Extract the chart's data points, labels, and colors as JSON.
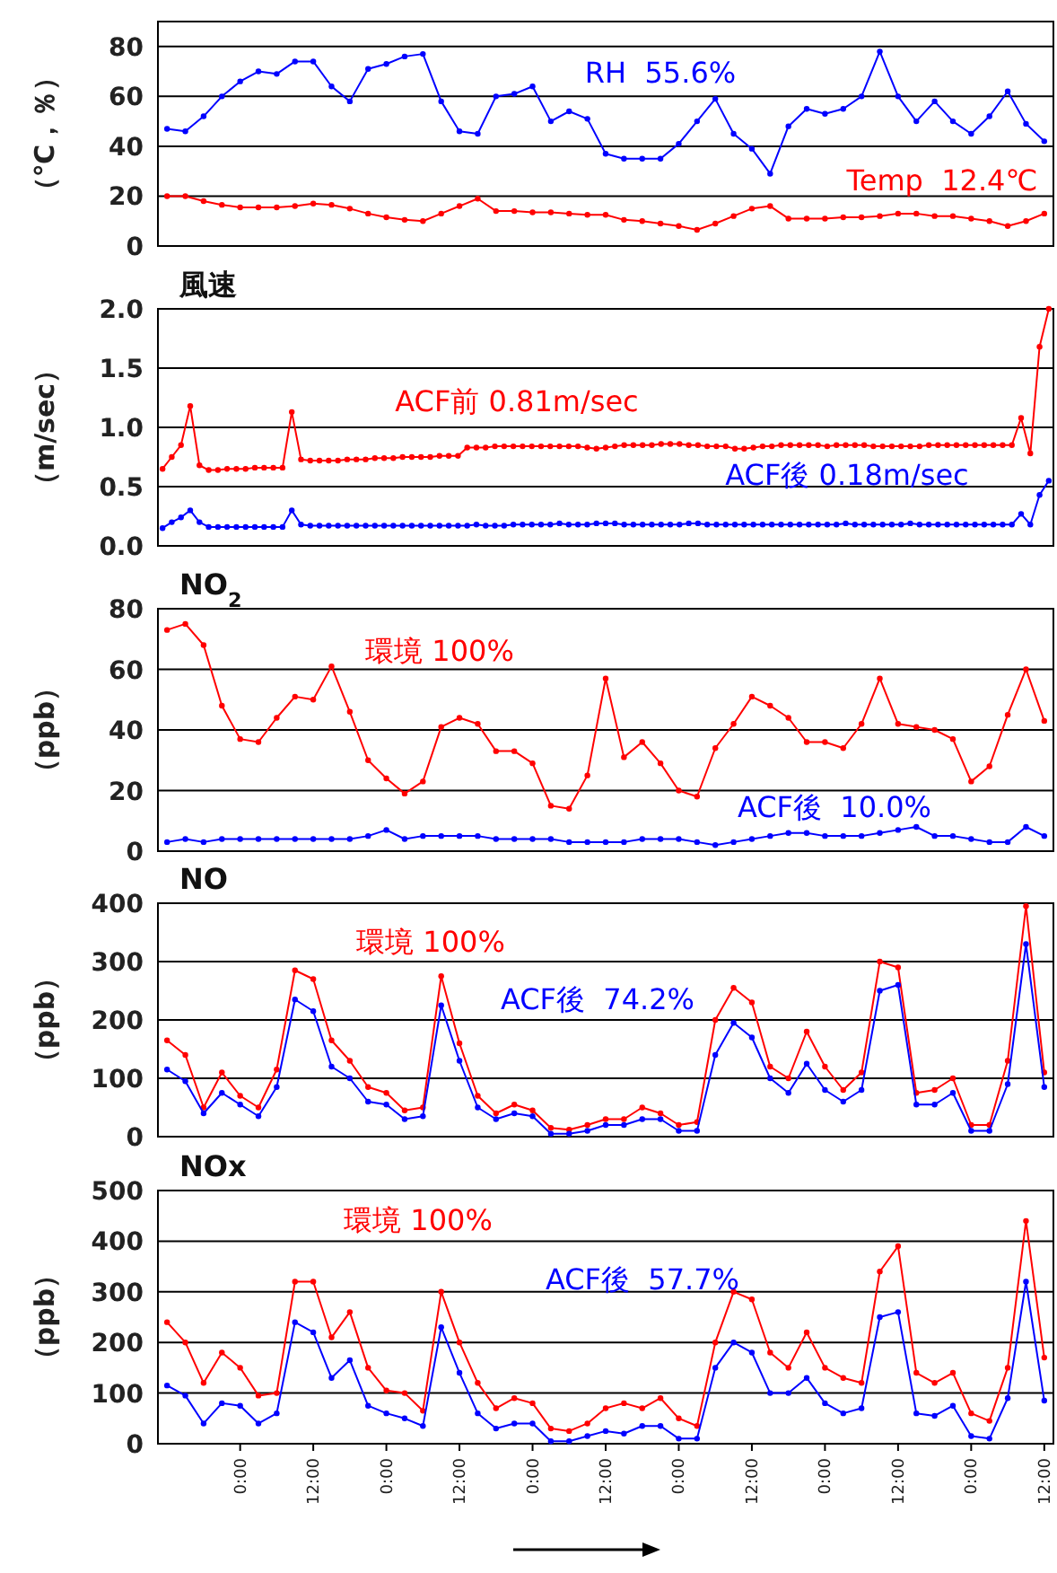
{
  "chart_data": [
    {
      "type": "line",
      "ylabel": "（℃，％）",
      "categories": [
        null,
        null,
        null,
        null,
        null,
        null,
        null,
        null,
        null,
        null,
        null,
        null,
        null,
        null,
        null,
        null,
        null,
        null,
        null,
        null,
        null,
        null,
        null,
        null,
        null,
        null,
        null,
        null,
        null,
        null,
        null,
        null,
        null,
        null,
        null,
        null,
        null,
        null,
        null,
        null,
        null,
        null,
        null,
        null,
        null,
        null,
        null,
        null,
        null
      ],
      "ylim": [
        0,
        90
      ],
      "yticks": [
        0,
        20,
        40,
        60,
        80
      ],
      "grid": "y",
      "marker": "circle",
      "tick_labels": "y",
      "series": [
        {
          "name": "RH  55.6%",
          "color": "#0000ff",
          "values": [
            47,
            46,
            52,
            60,
            66,
            70,
            69,
            74,
            74,
            64,
            58,
            71,
            73,
            76,
            77,
            58,
            46,
            45,
            60,
            61,
            64,
            50,
            54,
            51,
            37,
            35,
            35,
            35,
            41,
            50,
            59,
            45,
            39,
            29,
            48,
            55,
            53,
            55,
            60,
            78,
            60,
            50,
            58,
            50,
            45,
            52,
            62,
            49,
            42
          ]
        },
        {
          "name": "Temp  12.4℃",
          "color": "#ff0000",
          "values": [
            20,
            20,
            18,
            16.5,
            15.5,
            15.5,
            15.5,
            16,
            17,
            16.5,
            15,
            13,
            11.5,
            10.5,
            10,
            13,
            16,
            19,
            14,
            14,
            13.5,
            13.5,
            13,
            12.5,
            12.5,
            10.5,
            10,
            9,
            8,
            6.5,
            9,
            12,
            15,
            16,
            11,
            11,
            11,
            11.5,
            11.5,
            12,
            13,
            13,
            12,
            12,
            11,
            10,
            8,
            10,
            13
          ]
        }
      ]
    },
    {
      "type": "line",
      "title": "風速",
      "ylabel": "（m/sec）",
      "categories": [
        null,
        null,
        null,
        null,
        null,
        null,
        null,
        null,
        null,
        null,
        null,
        null,
        null,
        null,
        null,
        null,
        null,
        null,
        null,
        null,
        null,
        null,
        null,
        null,
        null,
        null,
        null,
        null,
        null,
        null,
        null,
        null,
        null,
        null,
        null,
        null,
        null,
        null,
        null,
        null,
        null,
        null,
        null,
        null,
        null,
        null,
        null,
        null,
        null,
        null,
        null,
        null,
        null,
        null,
        null,
        null,
        null,
        null,
        null,
        null,
        null,
        null,
        null,
        null,
        null,
        null,
        null,
        null,
        null,
        null,
        null,
        null,
        null,
        null,
        null,
        null,
        null,
        null,
        null,
        null,
        null,
        null,
        null,
        null,
        null,
        null,
        null,
        null,
        null,
        null,
        null,
        null,
        null,
        null,
        null,
        null,
        null
      ],
      "ylim": [
        0,
        2
      ],
      "yticks": [
        {
          "value": 0,
          "label": "0.0"
        },
        {
          "value": 0.5,
          "label": "0.5"
        },
        {
          "value": 1,
          "label": "1.0"
        },
        {
          "value": 1.5,
          "label": "1.5"
        },
        {
          "value": 2,
          "label": "2.0"
        }
      ],
      "grid": "y",
      "marker": "circle",
      "tick_labels": "y",
      "series": [
        {
          "name": "ACF前 0.81m/sec",
          "color": "#ff0000",
          "values": [
            0.65,
            0.75,
            0.85,
            1.18,
            0.68,
            0.64,
            0.64,
            0.65,
            0.65,
            0.65,
            0.66,
            0.66,
            0.66,
            0.66,
            1.13,
            0.73,
            0.72,
            0.72,
            0.72,
            0.72,
            0.73,
            0.73,
            0.73,
            0.74,
            0.74,
            0.74,
            0.75,
            0.75,
            0.75,
            0.75,
            0.76,
            0.76,
            0.76,
            0.83,
            0.83,
            0.83,
            0.84,
            0.84,
            0.84,
            0.84,
            0.84,
            0.84,
            0.84,
            0.84,
            0.84,
            0.84,
            0.83,
            0.82,
            0.83,
            0.84,
            0.85,
            0.85,
            0.85,
            0.85,
            0.86,
            0.86,
            0.86,
            0.85,
            0.85,
            0.84,
            0.84,
            0.84,
            0.82,
            0.82,
            0.83,
            0.84,
            0.84,
            0.85,
            0.85,
            0.85,
            0.85,
            0.85,
            0.84,
            0.85,
            0.85,
            0.85,
            0.85,
            0.84,
            0.84,
            0.84,
            0.84,
            0.84,
            0.84,
            0.85,
            0.85,
            0.85,
            0.85,
            0.85,
            0.85,
            0.85,
            0.85,
            0.85,
            0.85,
            1.08,
            0.78,
            1.68,
            2.0
          ]
        },
        {
          "name": "ACF後 0.18m/sec",
          "color": "#0000ff",
          "values": [
            0.15,
            0.2,
            0.24,
            0.3,
            0.2,
            0.16,
            0.16,
            0.16,
            0.16,
            0.16,
            0.16,
            0.16,
            0.16,
            0.16,
            0.3,
            0.18,
            0.17,
            0.17,
            0.17,
            0.17,
            0.17,
            0.17,
            0.17,
            0.17,
            0.17,
            0.17,
            0.17,
            0.17,
            0.17,
            0.17,
            0.17,
            0.17,
            0.17,
            0.17,
            0.18,
            0.17,
            0.17,
            0.17,
            0.18,
            0.18,
            0.18,
            0.18,
            0.18,
            0.19,
            0.18,
            0.18,
            0.18,
            0.19,
            0.19,
            0.19,
            0.18,
            0.18,
            0.18,
            0.18,
            0.18,
            0.18,
            0.18,
            0.19,
            0.19,
            0.18,
            0.18,
            0.18,
            0.18,
            0.18,
            0.18,
            0.18,
            0.18,
            0.18,
            0.18,
            0.18,
            0.18,
            0.18,
            0.18,
            0.18,
            0.19,
            0.18,
            0.18,
            0.18,
            0.18,
            0.18,
            0.18,
            0.19,
            0.18,
            0.18,
            0.18,
            0.18,
            0.18,
            0.18,
            0.18,
            0.18,
            0.18,
            0.18,
            0.18,
            0.27,
            0.18,
            0.43,
            0.55
          ]
        }
      ]
    },
    {
      "type": "line",
      "title": "NO$_{2}$",
      "ylabel": "（ppb）",
      "categories": [
        null,
        null,
        null,
        null,
        null,
        null,
        null,
        null,
        null,
        null,
        null,
        null,
        null,
        null,
        null,
        null,
        null,
        null,
        null,
        null,
        null,
        null,
        null,
        null,
        null,
        null,
        null,
        null,
        null,
        null,
        null,
        null,
        null,
        null,
        null,
        null,
        null,
        null,
        null,
        null,
        null,
        null,
        null,
        null,
        null,
        null,
        null,
        null,
        null
      ],
      "ylim": [
        0,
        80
      ],
      "yticks": [
        0,
        20,
        40,
        60,
        80
      ],
      "grid": "y",
      "marker": "circle",
      "tick_labels": "y",
      "series": [
        {
          "name": "環境 100%",
          "color": "#ff0000",
          "values": [
            73,
            75,
            68,
            48,
            37,
            36,
            44,
            51,
            50,
            61,
            46,
            30,
            24,
            19,
            23,
            41,
            44,
            42,
            33,
            33,
            29,
            15,
            14,
            25,
            57,
            31,
            36,
            29,
            20,
            18,
            34,
            42,
            51,
            48,
            44,
            36,
            36,
            34,
            42,
            57,
            42,
            41,
            40,
            37,
            23,
            28,
            45,
            60,
            43
          ]
        },
        {
          "name": "ACF後  10.0%",
          "color": "#0000ff",
          "values": [
            3,
            4,
            3,
            4,
            4,
            4,
            4,
            4,
            4,
            4,
            4,
            5,
            7,
            4,
            5,
            5,
            5,
            5,
            4,
            4,
            4,
            4,
            3,
            3,
            3,
            3,
            4,
            4,
            4,
            3,
            2,
            3,
            4,
            5,
            6,
            6,
            5,
            5,
            5,
            6,
            7,
            8,
            5,
            5,
            4,
            3,
            3,
            8,
            5
          ]
        }
      ]
    },
    {
      "type": "line",
      "title": "NO",
      "ylabel": "（ppb）",
      "categories": [
        null,
        null,
        null,
        null,
        null,
        null,
        null,
        null,
        null,
        null,
        null,
        null,
        null,
        null,
        null,
        null,
        null,
        null,
        null,
        null,
        null,
        null,
        null,
        null,
        null,
        null,
        null,
        null,
        null,
        null,
        null,
        null,
        null,
        null,
        null,
        null,
        null,
        null,
        null,
        null,
        null,
        null,
        null,
        null,
        null,
        null,
        null,
        null,
        null
      ],
      "ylim": [
        0,
        400
      ],
      "yticks": [
        0,
        100,
        200,
        300,
        400
      ],
      "grid": "y",
      "marker": "circle",
      "tick_labels": "y",
      "series": [
        {
          "name": "環境 100%",
          "color": "#ff0000",
          "values": [
            165,
            140,
            50,
            110,
            70,
            50,
            115,
            285,
            270,
            165,
            130,
            85,
            75,
            45,
            50,
            275,
            160,
            70,
            40,
            55,
            45,
            15,
            12,
            20,
            30,
            30,
            50,
            40,
            20,
            25,
            200,
            255,
            230,
            120,
            100,
            180,
            120,
            80,
            110,
            300,
            290,
            75,
            80,
            100,
            20,
            20,
            130,
            395,
            110
          ]
        },
        {
          "name": "ACF後  74.2%",
          "color": "#0000ff",
          "values": [
            115,
            95,
            40,
            75,
            55,
            35,
            85,
            235,
            215,
            120,
            100,
            60,
            55,
            30,
            35,
            225,
            130,
            50,
            30,
            40,
            35,
            5,
            5,
            10,
            20,
            20,
            30,
            30,
            10,
            10,
            140,
            195,
            170,
            100,
            75,
            125,
            80,
            60,
            80,
            250,
            260,
            55,
            55,
            75,
            10,
            10,
            90,
            330,
            85
          ]
        }
      ]
    },
    {
      "type": "line",
      "title": "NOx",
      "ylabel": "（ppb）",
      "categories": [
        null,
        null,
        null,
        null,
        "0:00",
        null,
        null,
        null,
        "12:00",
        null,
        null,
        null,
        "0:00",
        null,
        null,
        null,
        "12:00",
        null,
        null,
        null,
        "0:00",
        null,
        null,
        null,
        "12:00",
        null,
        null,
        null,
        "0:00",
        null,
        null,
        null,
        "12:00",
        null,
        null,
        null,
        "0:00",
        null,
        null,
        null,
        "12:00",
        null,
        null,
        null,
        "0:00",
        null,
        null,
        null,
        "12:00"
      ],
      "ylim": [
        0,
        500
      ],
      "yticks": [
        0,
        100,
        200,
        300,
        400,
        500
      ],
      "grid": "y",
      "marker": "circle",
      "series": [
        {
          "name": "環境 100%",
          "color": "#ff0000",
          "values": [
            240,
            200,
            120,
            180,
            150,
            95,
            100,
            320,
            320,
            210,
            260,
            150,
            105,
            100,
            65,
            300,
            200,
            120,
            70,
            90,
            80,
            30,
            25,
            40,
            70,
            80,
            70,
            90,
            50,
            35,
            200,
            300,
            285,
            180,
            150,
            220,
            150,
            130,
            120,
            340,
            390,
            140,
            120,
            140,
            60,
            45,
            150,
            440,
            170
          ]
        },
        {
          "name": "ACF後  57.7%",
          "color": "#0000ff",
          "values": [
            115,
            95,
            40,
            80,
            75,
            40,
            60,
            240,
            220,
            130,
            165,
            75,
            60,
            50,
            35,
            230,
            140,
            60,
            30,
            40,
            40,
            5,
            5,
            15,
            25,
            20,
            35,
            35,
            10,
            10,
            150,
            200,
            180,
            100,
            100,
            130,
            80,
            60,
            70,
            250,
            260,
            60,
            55,
            75,
            15,
            10,
            90,
            320,
            85
          ]
        }
      ]
    }
  ]
}
